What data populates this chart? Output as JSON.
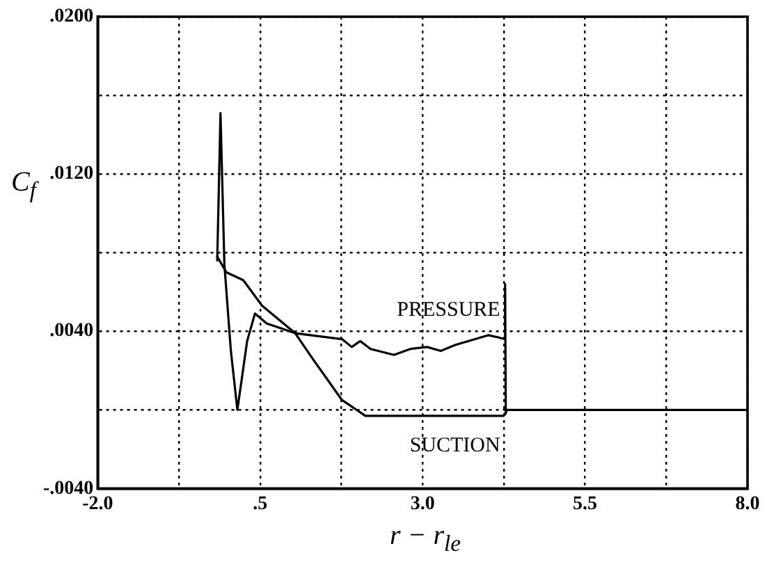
{
  "chart_data": {
    "type": "line",
    "xlabel": "r − r$_{le}$",
    "ylabel": "C$_{f}$",
    "xlim": [
      -2.0,
      8.0
    ],
    "ylim": [
      -0.004,
      0.02
    ],
    "xticks": [
      {
        "value": -2,
        "label": "-2.0"
      },
      {
        "value": -0.75,
        "label": null
      },
      {
        "value": 0.5,
        "label": ".5"
      },
      {
        "value": 1.75,
        "label": null
      },
      {
        "value": 3,
        "label": "3.0"
      },
      {
        "value": 4.25,
        "label": null
      },
      {
        "value": 5.5,
        "label": "5.5"
      },
      {
        "value": 6.75,
        "label": null
      },
      {
        "value": 8,
        "label": "8.0"
      }
    ],
    "yticks": [
      {
        "value": -0.004,
        "label": "-.0040"
      },
      {
        "value": 0,
        "label": null
      },
      {
        "value": 0.004,
        "label": ".0040"
      },
      {
        "value": 0.008,
        "label": null
      },
      {
        "value": 0.012,
        "label": ".0120"
      },
      {
        "value": 0.016,
        "label": null
      },
      {
        "value": 0.02,
        "label": ".0200"
      }
    ],
    "grid": true,
    "legend": false,
    "marker": "none",
    "line_style": "solid",
    "series": [
      {
        "name": "PRESSURE",
        "color": "#000000",
        "x": [
          -0.16,
          -0.02,
          0.24,
          0.53,
          1.04,
          1.76,
          1.91,
          2.04,
          2.2,
          2.56,
          2.81,
          3.07,
          3.28,
          3.5,
          4.01,
          4.15,
          4.26,
          4.27,
          4.28
        ],
        "values": [
          0.0078,
          0.007,
          0.0066,
          0.0053,
          0.0039,
          0.0036,
          0.0032,
          0.0035,
          0.0031,
          0.0028,
          0.0031,
          0.0032,
          0.003,
          0.0033,
          0.0038,
          0.0037,
          0.0036,
          0.0064,
          -0.0002
        ]
      },
      {
        "name": "SUCTION",
        "color": "#000000",
        "x": [
          -0.16,
          -0.11,
          -0.05,
          0.05,
          0.15,
          0.3,
          0.42,
          0.6,
          1.04,
          1.33,
          1.76,
          2.12,
          3.0,
          4.25,
          4.3,
          8.0
        ],
        "values": [
          0.0076,
          0.0151,
          0.0074,
          0.003,
          0.0,
          0.0035,
          0.0049,
          0.0044,
          0.0039,
          0.0025,
          0.0005,
          -0.0003,
          -0.0003,
          -0.0003,
          0.0,
          0.0
        ]
      }
    ]
  }
}
